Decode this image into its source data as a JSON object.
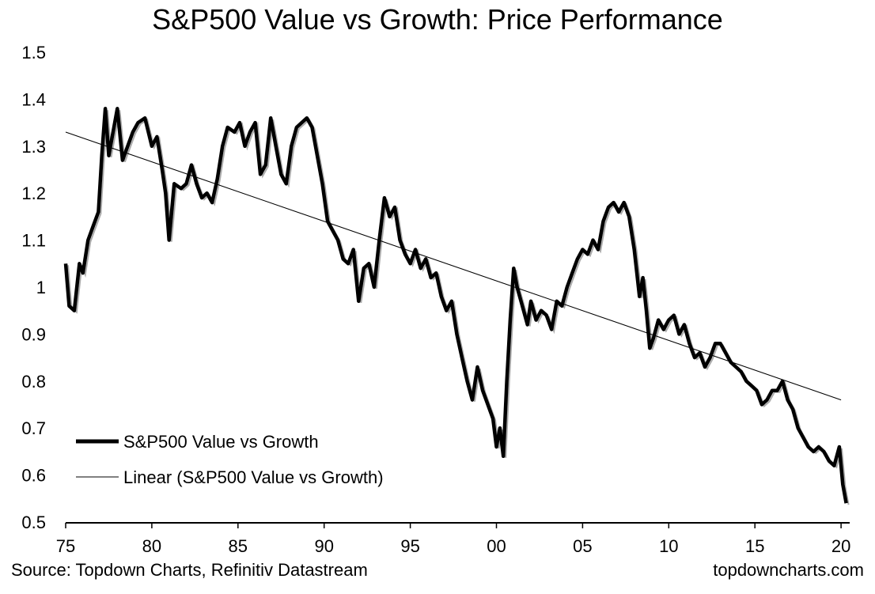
{
  "chart_data": {
    "type": "line",
    "title": "S&P500 Value vs Growth: Price Performance",
    "xlabel": "",
    "ylabel": "",
    "xlim": [
      1975,
      2020.5
    ],
    "ylim": [
      0.5,
      1.5
    ],
    "y_ticks": [
      "0.5",
      "0.6",
      "0.7",
      "0.8",
      "0.9",
      "1",
      "1.1",
      "1.2",
      "1.3",
      "1.4",
      "1.5"
    ],
    "x_ticks": [
      {
        "x": 1975,
        "label": "75"
      },
      {
        "x": 1980,
        "label": "80"
      },
      {
        "x": 1985,
        "label": "85"
      },
      {
        "x": 1990,
        "label": "90"
      },
      {
        "x": 1995,
        "label": "95"
      },
      {
        "x": 2000,
        "label": "00"
      },
      {
        "x": 2005,
        "label": "05"
      },
      {
        "x": 2010,
        "label": "10"
      },
      {
        "x": 2015,
        "label": "15"
      },
      {
        "x": 2020,
        "label": "20"
      }
    ],
    "grid": false,
    "legend_position": "bottom-left",
    "series": [
      {
        "name": "S&P500 Value vs Growth",
        "color": "#000000",
        "style": "thick",
        "x": [
          1975.0,
          1975.2,
          1975.5,
          1975.8,
          1976.0,
          1976.3,
          1976.6,
          1976.9,
          1977.1,
          1977.3,
          1977.5,
          1977.8,
          1978.0,
          1978.3,
          1978.6,
          1978.9,
          1979.2,
          1979.6,
          1980.0,
          1980.3,
          1980.6,
          1980.8,
          1981.0,
          1981.3,
          1981.7,
          1982.0,
          1982.3,
          1982.6,
          1982.9,
          1983.2,
          1983.5,
          1983.8,
          1984.1,
          1984.4,
          1984.8,
          1985.1,
          1985.4,
          1985.7,
          1986.0,
          1986.3,
          1986.6,
          1986.9,
          1987.2,
          1987.5,
          1987.8,
          1988.1,
          1988.4,
          1988.7,
          1989.0,
          1989.3,
          1989.6,
          1989.9,
          1990.2,
          1990.5,
          1990.8,
          1991.1,
          1991.4,
          1991.7,
          1992.0,
          1992.3,
          1992.6,
          1992.9,
          1993.2,
          1993.5,
          1993.8,
          1994.1,
          1994.4,
          1994.7,
          1995.0,
          1995.3,
          1995.6,
          1995.9,
          1996.2,
          1996.5,
          1996.8,
          1997.1,
          1997.4,
          1997.7,
          1998.0,
          1998.3,
          1998.6,
          1998.9,
          1999.2,
          1999.5,
          1999.8,
          2000.0,
          2000.2,
          2000.4,
          2000.6,
          2000.8,
          2001.0,
          2001.2,
          2001.5,
          2001.8,
          2002.0,
          2002.3,
          2002.6,
          2002.9,
          2003.2,
          2003.5,
          2003.8,
          2004.1,
          2004.4,
          2004.7,
          2005.0,
          2005.3,
          2005.6,
          2005.9,
          2006.2,
          2006.5,
          2006.8,
          2007.1,
          2007.4,
          2007.7,
          2008.0,
          2008.3,
          2008.5,
          2008.7,
          2008.9,
          2009.1,
          2009.4,
          2009.7,
          2010.0,
          2010.3,
          2010.6,
          2010.9,
          2011.2,
          2011.5,
          2011.8,
          2012.1,
          2012.4,
          2012.7,
          2013.0,
          2013.3,
          2013.6,
          2013.9,
          2014.2,
          2014.5,
          2014.8,
          2015.1,
          2015.4,
          2015.7,
          2016.0,
          2016.3,
          2016.6,
          2016.9,
          2017.2,
          2017.5,
          2017.8,
          2018.1,
          2018.4,
          2018.7,
          2019.0,
          2019.3,
          2019.6,
          2019.9,
          2020.1,
          2020.3
        ],
        "y": [
          1.05,
          0.96,
          0.95,
          1.05,
          1.03,
          1.1,
          1.13,
          1.16,
          1.28,
          1.38,
          1.28,
          1.34,
          1.38,
          1.27,
          1.3,
          1.33,
          1.35,
          1.36,
          1.3,
          1.32,
          1.25,
          1.2,
          1.1,
          1.22,
          1.21,
          1.22,
          1.26,
          1.22,
          1.19,
          1.2,
          1.18,
          1.23,
          1.3,
          1.34,
          1.33,
          1.35,
          1.3,
          1.33,
          1.35,
          1.24,
          1.26,
          1.36,
          1.3,
          1.24,
          1.22,
          1.3,
          1.34,
          1.35,
          1.36,
          1.34,
          1.28,
          1.22,
          1.14,
          1.12,
          1.1,
          1.06,
          1.05,
          1.08,
          0.97,
          1.04,
          1.05,
          1.0,
          1.1,
          1.19,
          1.15,
          1.17,
          1.1,
          1.07,
          1.05,
          1.08,
          1.04,
          1.06,
          1.02,
          1.03,
          0.98,
          0.95,
          0.97,
          0.9,
          0.85,
          0.8,
          0.76,
          0.83,
          0.78,
          0.75,
          0.72,
          0.66,
          0.7,
          0.64,
          0.8,
          0.93,
          1.04,
          1.0,
          0.96,
          0.92,
          0.97,
          0.93,
          0.95,
          0.94,
          0.91,
          0.97,
          0.96,
          1.0,
          1.03,
          1.06,
          1.08,
          1.07,
          1.1,
          1.08,
          1.14,
          1.17,
          1.18,
          1.16,
          1.18,
          1.15,
          1.08,
          0.98,
          1.02,
          0.95,
          0.87,
          0.89,
          0.93,
          0.91,
          0.93,
          0.94,
          0.9,
          0.92,
          0.88,
          0.85,
          0.86,
          0.83,
          0.85,
          0.88,
          0.88,
          0.86,
          0.84,
          0.83,
          0.82,
          0.8,
          0.79,
          0.78,
          0.75,
          0.76,
          0.78,
          0.78,
          0.8,
          0.76,
          0.74,
          0.7,
          0.68,
          0.66,
          0.65,
          0.66,
          0.65,
          0.63,
          0.62,
          0.66,
          0.58,
          0.54
        ],
        "trend_color": "#aaaaaa"
      },
      {
        "name": "Linear (S&P500 Value vs Growth)",
        "color": "#000000",
        "style": "thin",
        "x": [
          1975.0,
          2020.0
        ],
        "y": [
          1.33,
          0.76
        ]
      }
    ],
    "source": "Source: Topdown Charts, Refinitiv Datastream",
    "site": "topdowncharts.com"
  }
}
